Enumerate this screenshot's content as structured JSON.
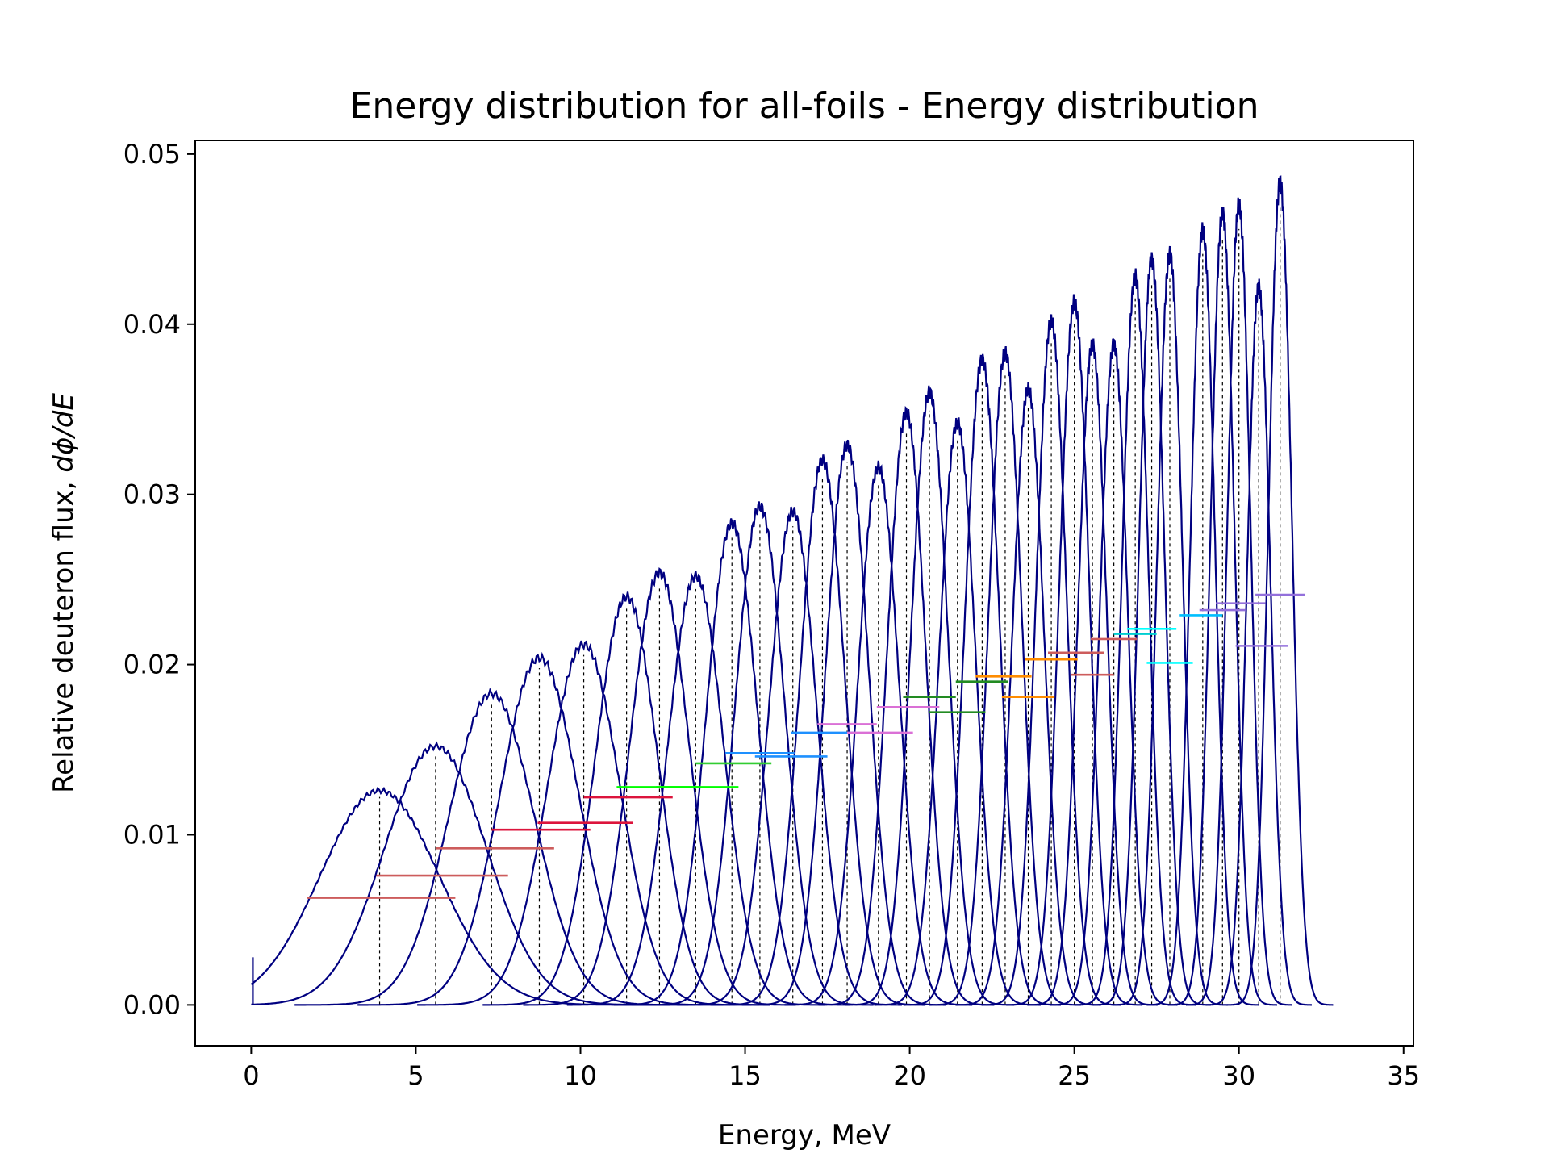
{
  "chart_data": {
    "type": "line",
    "title": "Energy distribution for all-foils - Energy distribution",
    "xlabel": "Energy, MeV",
    "ylabel_prefix": "Relative deuteron flux, ",
    "ylabel_math": "dϕ/dE",
    "xlim": [
      -1.7,
      35.3
    ],
    "ylim": [
      -0.0024,
      0.0508
    ],
    "xticks": [
      0,
      5,
      10,
      15,
      20,
      25,
      30,
      35
    ],
    "yticks": [
      0.0,
      0.01,
      0.02,
      0.03,
      0.04,
      0.05
    ],
    "xtick_labels": [
      "0",
      "5",
      "10",
      "15",
      "20",
      "25",
      "30",
      "35"
    ],
    "ytick_labels": [
      "0.00",
      "0.01",
      "0.02",
      "0.03",
      "0.04",
      "0.05"
    ],
    "grid": false,
    "legend": "none",
    "colors": {
      "curve": "#000080",
      "median_line": "#000000"
    },
    "peaks": [
      {
        "center": 3.9,
        "height": 0.0126,
        "width": 1.8,
        "skew": 0.0,
        "band_y": 0.0063,
        "band_x": [
          1.7,
          6.2
        ],
        "band_color": "#cd5c5c"
      },
      {
        "center": 5.6,
        "height": 0.0152,
        "width": 1.55,
        "skew": 0.0,
        "band_y": 0.0076,
        "band_x": [
          3.8,
          7.8
        ],
        "band_color": "#cd5c5c"
      },
      {
        "center": 7.3,
        "height": 0.0183,
        "width": 1.3,
        "skew": 0.0,
        "band_y": 0.0092,
        "band_x": [
          5.6,
          9.2
        ],
        "band_color": "#cd5c5c"
      },
      {
        "center": 8.75,
        "height": 0.0204,
        "width": 1.2,
        "skew": 0.0,
        "band_y": 0.0103,
        "band_x": [
          7.3,
          10.3
        ],
        "band_color": "#dc143c"
      },
      {
        "center": 10.1,
        "height": 0.0212,
        "width": 1.1,
        "skew": 0.0,
        "band_y": 0.0107,
        "band_x": [
          8.7,
          11.6
        ],
        "band_color": "#dc143c"
      },
      {
        "center": 11.4,
        "height": 0.024,
        "width": 0.95,
        "skew": 0.0,
        "band_y": 0.0122,
        "band_x": [
          10.1,
          12.8
        ],
        "band_color": "#dc143c"
      },
      {
        "center": 12.4,
        "height": 0.0254,
        "width": 0.9,
        "skew": 0.0,
        "band_y": 0.0128,
        "band_x": [
          11.1,
          13.6
        ],
        "band_color": "#00ff00"
      },
      {
        "center": 13.5,
        "height": 0.0252,
        "width": 0.85,
        "skew": 0.0,
        "band_y": 0.0128,
        "band_x": [
          12.3,
          14.8
        ],
        "band_color": "#00ff00"
      },
      {
        "center": 14.6,
        "height": 0.0283,
        "width": 0.78,
        "skew": 0.0,
        "band_y": 0.0142,
        "band_x": [
          13.5,
          15.8
        ],
        "band_color": "#32cd32"
      },
      {
        "center": 15.45,
        "height": 0.0293,
        "width": 0.75,
        "skew": 0.0,
        "band_y": 0.0148,
        "band_x": [
          14.4,
          16.5
        ],
        "band_color": "#1e90ff"
      },
      {
        "center": 16.45,
        "height": 0.029,
        "width": 0.72,
        "skew": 0.0,
        "band_y": 0.0146,
        "band_x": [
          15.3,
          17.5
        ],
        "band_color": "#1e90ff"
      },
      {
        "center": 17.35,
        "height": 0.032,
        "width": 0.68,
        "skew": 0.0,
        "band_y": 0.016,
        "band_x": [
          16.4,
          18.3
        ],
        "band_color": "#1e90ff"
      },
      {
        "center": 18.1,
        "height": 0.0329,
        "width": 0.65,
        "skew": 0.0,
        "band_y": 0.0165,
        "band_x": [
          17.2,
          19.0
        ],
        "band_color": "#da70d6"
      },
      {
        "center": 19.05,
        "height": 0.0316,
        "width": 0.62,
        "skew": 0.0,
        "band_y": 0.016,
        "band_x": [
          18.1,
          20.1
        ],
        "band_color": "#da70d6"
      },
      {
        "center": 19.9,
        "height": 0.0348,
        "width": 0.58,
        "skew": 0.0,
        "band_y": 0.0175,
        "band_x": [
          19.0,
          20.9
        ],
        "band_color": "#da70d6"
      },
      {
        "center": 20.6,
        "height": 0.036,
        "width": 0.56,
        "skew": 0.0,
        "band_y": 0.0181,
        "band_x": [
          19.8,
          21.4
        ],
        "band_color": "#228b22"
      },
      {
        "center": 21.45,
        "height": 0.0342,
        "width": 0.55,
        "skew": 0.0,
        "band_y": 0.0172,
        "band_x": [
          20.6,
          22.3
        ],
        "band_color": "#228b22"
      },
      {
        "center": 22.2,
        "height": 0.0379,
        "width": 0.52,
        "skew": 0.0,
        "band_y": 0.019,
        "band_x": [
          21.4,
          23.0
        ],
        "band_color": "#228b22"
      },
      {
        "center": 22.9,
        "height": 0.0383,
        "width": 0.5,
        "skew": 0.0,
        "band_y": 0.0193,
        "band_x": [
          22.0,
          23.7
        ],
        "band_color": "#ff8c00"
      },
      {
        "center": 23.6,
        "height": 0.0362,
        "width": 0.48,
        "skew": 0.0,
        "band_y": 0.0181,
        "band_x": [
          22.8,
          24.4
        ],
        "band_color": "#ff8c00"
      },
      {
        "center": 24.3,
        "height": 0.0402,
        "width": 0.46,
        "skew": 0.0,
        "band_y": 0.0203,
        "band_x": [
          23.5,
          25.1
        ],
        "band_color": "#ff8c00"
      },
      {
        "center": 25.0,
        "height": 0.0413,
        "width": 0.45,
        "skew": 0.0,
        "band_y": 0.0207,
        "band_x": [
          24.2,
          25.9
        ],
        "band_color": "#cd5c5c"
      },
      {
        "center": 25.55,
        "height": 0.0388,
        "width": 0.43,
        "skew": 0.0,
        "band_y": 0.0194,
        "band_x": [
          24.9,
          26.2
        ],
        "band_color": "#cd5c5c"
      },
      {
        "center": 26.2,
        "height": 0.0388,
        "width": 0.42,
        "skew": 0.0,
        "band_y": 0.0215,
        "band_x": [
          25.5,
          26.9
        ],
        "band_color": "#cd5c5c"
      },
      {
        "center": 26.85,
        "height": 0.0428,
        "width": 0.4,
        "skew": 0.0,
        "band_y": 0.0218,
        "band_x": [
          26.2,
          27.5
        ],
        "band_color": "#00ced1"
      },
      {
        "center": 27.35,
        "height": 0.0438,
        "width": 0.39,
        "skew": 0.0,
        "band_y": 0.0221,
        "band_x": [
          26.6,
          28.1
        ],
        "band_color": "#00ffff"
      },
      {
        "center": 27.9,
        "height": 0.0441,
        "width": 0.38,
        "skew": 0.0,
        "band_y": 0.0201,
        "band_x": [
          27.2,
          28.6
        ],
        "band_color": "#00ffff"
      },
      {
        "center": 28.9,
        "height": 0.0455,
        "width": 0.37,
        "skew": 0.0,
        "band_y": 0.0229,
        "band_x": [
          28.2,
          29.5
        ],
        "band_color": "#00bfff"
      },
      {
        "center": 29.5,
        "height": 0.0465,
        "width": 0.36,
        "skew": 0.0,
        "band_y": 0.0232,
        "band_x": [
          28.8,
          30.2
        ],
        "band_color": "#9370db"
      },
      {
        "center": 30.0,
        "height": 0.047,
        "width": 0.35,
        "skew": 0.0,
        "band_y": 0.0236,
        "band_x": [
          29.3,
          30.8
        ],
        "band_color": "#9370db"
      },
      {
        "center": 30.6,
        "height": 0.0422,
        "width": 0.35,
        "skew": 0.0,
        "band_y": 0.0211,
        "band_x": [
          29.9,
          31.5
        ],
        "band_color": "#9370db"
      },
      {
        "center": 31.25,
        "height": 0.0483,
        "width": 0.35,
        "skew": 0.0,
        "band_y": 0.0241,
        "band_x": [
          30.5,
          32.0
        ],
        "band_color": "#9370db"
      }
    ]
  }
}
